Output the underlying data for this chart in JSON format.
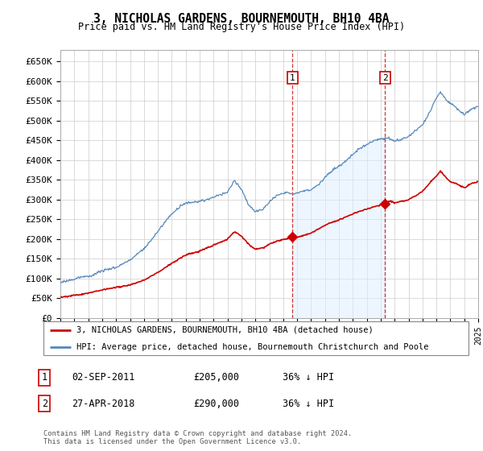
{
  "title": "3, NICHOLAS GARDENS, BOURNEMOUTH, BH10 4BA",
  "subtitle": "Price paid vs. HM Land Registry's House Price Index (HPI)",
  "ylim": [
    0,
    680000
  ],
  "yticks": [
    0,
    50000,
    100000,
    150000,
    200000,
    250000,
    300000,
    350000,
    400000,
    450000,
    500000,
    550000,
    600000,
    650000
  ],
  "sale1_date": 2011.67,
  "sale1_price": 205000,
  "sale2_date": 2018.32,
  "sale2_price": 290000,
  "line1_color": "#cc0000",
  "line2_color": "#5588bb",
  "fill_color": "#ddeeff",
  "legend_label1": "3, NICHOLAS GARDENS, BOURNEMOUTH, BH10 4BA (detached house)",
  "legend_label2": "HPI: Average price, detached house, Bournemouth Christchurch and Poole",
  "table_row1": [
    "1",
    "02-SEP-2011",
    "£205,000",
    "36% ↓ HPI"
  ],
  "table_row2": [
    "2",
    "27-APR-2018",
    "£290,000",
    "36% ↓ HPI"
  ],
  "footer": "Contains HM Land Registry data © Crown copyright and database right 2024.\nThis data is licensed under the Open Government Licence v3.0."
}
